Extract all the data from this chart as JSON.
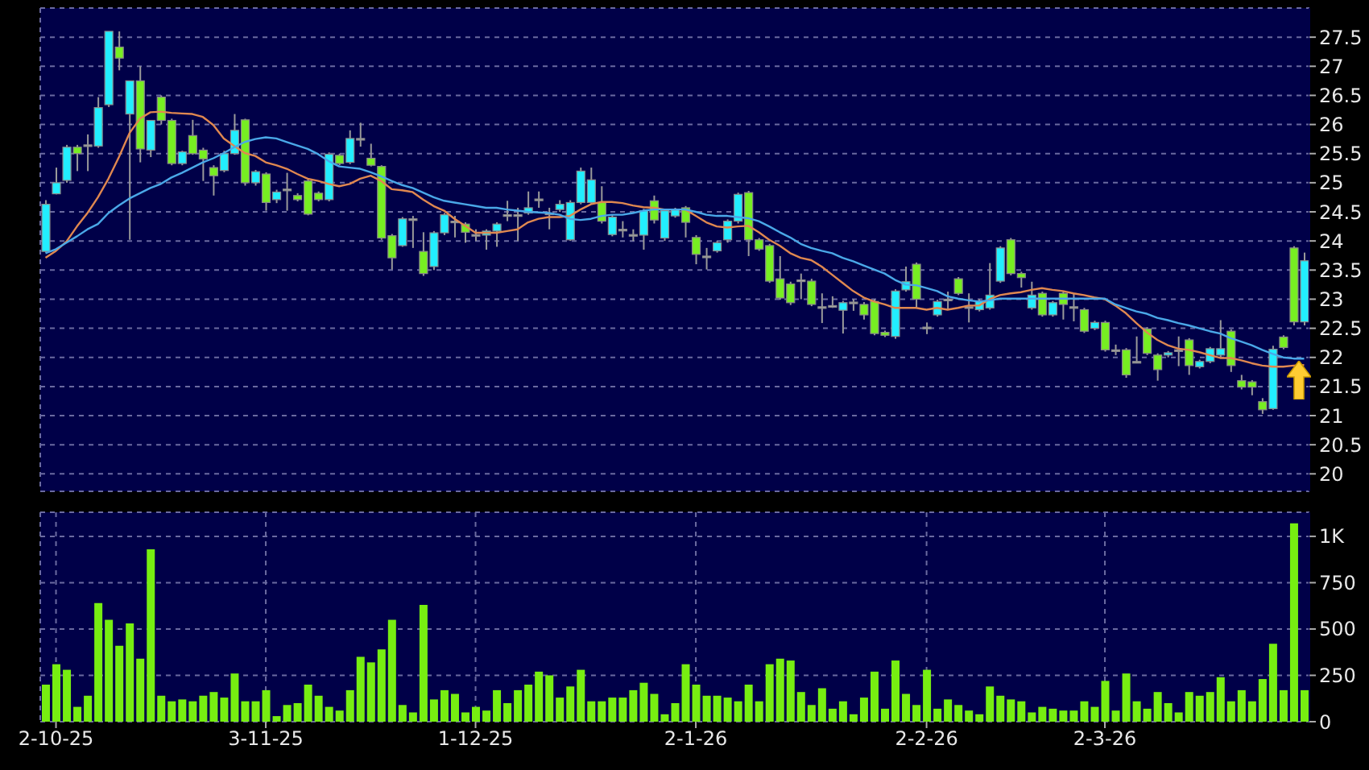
{
  "chart_data": [
    {
      "type": "candlestick",
      "categories": [
        null,
        null,
        null,
        null,
        null,
        null,
        null,
        null,
        null,
        null,
        null,
        null,
        null,
        null,
        null,
        null,
        null,
        null,
        null,
        null,
        null,
        null,
        null,
        null,
        null,
        null,
        null,
        null,
        null,
        null,
        null,
        null,
        null,
        null,
        null,
        null,
        null,
        null,
        null,
        null,
        null,
        null,
        null,
        null,
        null,
        null,
        null,
        null,
        null,
        null,
        null,
        null,
        null,
        null,
        null,
        null,
        null,
        null,
        null,
        null,
        null,
        null,
        null,
        null,
        null,
        null,
        null,
        null,
        null,
        null,
        null,
        null,
        null,
        null,
        null,
        null,
        null,
        null,
        null,
        null,
        null,
        null,
        null,
        null,
        null,
        null,
        null,
        null,
        null,
        null,
        null,
        null,
        null,
        null,
        null,
        null,
        null,
        null,
        null,
        null,
        null,
        null,
        null,
        null,
        null,
        null,
        null,
        null,
        null,
        null,
        null,
        null,
        null,
        null,
        null,
        null,
        null,
        null,
        null,
        null,
        null
      ],
      "ohlc": [
        [
          23.82,
          24.7,
          23.8,
          24.63
        ],
        [
          24.81,
          25.26,
          24.8,
          25.0
        ],
        [
          25.04,
          25.65,
          25.0,
          25.61
        ],
        [
          25.61,
          25.65,
          25.2,
          25.5
        ],
        [
          25.65,
          25.83,
          25.2,
          25.65
        ],
        [
          25.63,
          26.47,
          25.6,
          26.29
        ],
        [
          26.34,
          27.6,
          26.3,
          27.6
        ],
        [
          27.33,
          27.6,
          26.93,
          27.14
        ],
        [
          26.18,
          26.75,
          24.02,
          26.75
        ],
        [
          26.75,
          27.0,
          25.35,
          25.58
        ],
        [
          25.56,
          26.07,
          25.44,
          26.07
        ],
        [
          26.47,
          26.5,
          26.0,
          26.07
        ],
        [
          26.07,
          26.1,
          25.3,
          25.33
        ],
        [
          25.33,
          25.55,
          25.3,
          25.53
        ],
        [
          25.81,
          26.08,
          25.48,
          25.5
        ],
        [
          25.56,
          25.6,
          25.03,
          25.41
        ],
        [
          25.26,
          25.3,
          24.78,
          25.12
        ],
        [
          25.21,
          25.55,
          25.18,
          25.5
        ],
        [
          25.5,
          26.18,
          25.48,
          25.9
        ],
        [
          26.08,
          26.1,
          24.95,
          25.0
        ],
        [
          25.0,
          25.22,
          24.95,
          25.19
        ],
        [
          25.15,
          25.18,
          24.52,
          24.66
        ],
        [
          24.71,
          24.88,
          24.65,
          24.84
        ],
        [
          24.89,
          25.17,
          24.52,
          24.89
        ],
        [
          24.78,
          24.82,
          24.68,
          24.71
        ],
        [
          25.03,
          25.06,
          24.44,
          24.46
        ],
        [
          24.82,
          24.85,
          24.68,
          24.71
        ],
        [
          24.71,
          25.52,
          24.68,
          25.49
        ],
        [
          25.47,
          25.5,
          25.3,
          25.33
        ],
        [
          25.35,
          25.9,
          25.32,
          25.76
        ],
        [
          25.76,
          26.03,
          25.62,
          25.76
        ],
        [
          25.42,
          25.67,
          25.28,
          25.3
        ],
        [
          25.28,
          25.3,
          24.02,
          24.05
        ],
        [
          24.09,
          24.12,
          23.51,
          23.71
        ],
        [
          23.92,
          24.41,
          23.9,
          24.38
        ],
        [
          24.38,
          24.43,
          23.88,
          24.38
        ],
        [
          23.82,
          24.15,
          23.4,
          23.44
        ],
        [
          23.56,
          24.17,
          23.5,
          24.14
        ],
        [
          24.14,
          24.48,
          24.1,
          24.45
        ],
        [
          24.34,
          24.43,
          24.06,
          24.34
        ],
        [
          24.29,
          24.32,
          23.97,
          24.15
        ],
        [
          24.11,
          24.2,
          24.0,
          24.11
        ],
        [
          24.1,
          24.2,
          23.85,
          24.17
        ],
        [
          24.17,
          24.32,
          23.9,
          24.29
        ],
        [
          24.45,
          24.69,
          24.34,
          24.45
        ],
        [
          24.45,
          24.57,
          24.0,
          24.45
        ],
        [
          24.48,
          24.85,
          24.45,
          24.57
        ],
        [
          24.72,
          24.85,
          24.57,
          24.72
        ],
        [
          24.48,
          24.57,
          24.2,
          24.48
        ],
        [
          24.54,
          24.7,
          24.5,
          24.63
        ],
        [
          24.02,
          24.7,
          24.0,
          24.66
        ],
        [
          24.66,
          25.26,
          24.63,
          25.2
        ],
        [
          24.66,
          25.26,
          24.63,
          25.05
        ],
        [
          24.66,
          24.94,
          24.3,
          24.34
        ],
        [
          24.11,
          24.45,
          24.08,
          24.41
        ],
        [
          24.2,
          24.34,
          24.06,
          24.2
        ],
        [
          24.11,
          24.2,
          24.0,
          24.11
        ],
        [
          24.1,
          24.55,
          23.85,
          24.52
        ],
        [
          24.69,
          24.78,
          24.3,
          24.36
        ],
        [
          24.05,
          24.55,
          24.0,
          24.52
        ],
        [
          24.43,
          24.57,
          24.4,
          24.54
        ],
        [
          24.57,
          24.6,
          24.06,
          24.32
        ],
        [
          24.06,
          24.1,
          23.6,
          23.77
        ],
        [
          23.74,
          23.88,
          23.51,
          23.74
        ],
        [
          23.83,
          24.0,
          23.8,
          23.97
        ],
        [
          24.02,
          24.37,
          23.97,
          24.34
        ],
        [
          24.34,
          24.83,
          24.3,
          24.8
        ],
        [
          24.83,
          24.86,
          23.74,
          24.02
        ],
        [
          24.02,
          24.05,
          23.83,
          23.86
        ],
        [
          23.92,
          23.95,
          23.28,
          23.31
        ],
        [
          23.35,
          23.74,
          22.99,
          23.02
        ],
        [
          23.26,
          23.3,
          22.9,
          22.94
        ],
        [
          23.33,
          23.44,
          23.0,
          23.33
        ],
        [
          23.31,
          23.35,
          22.88,
          22.91
        ],
        [
          22.87,
          23.1,
          22.59,
          22.87
        ],
        [
          22.89,
          23.05,
          22.85,
          22.89
        ],
        [
          22.81,
          22.97,
          22.41,
          22.94
        ],
        [
          22.95,
          23.0,
          22.8,
          22.95
        ],
        [
          22.91,
          22.95,
          22.65,
          22.73
        ],
        [
          22.96,
          23.0,
          22.38,
          22.41
        ],
        [
          22.43,
          22.46,
          22.35,
          22.38
        ],
        [
          22.36,
          23.17,
          22.32,
          23.14
        ],
        [
          23.16,
          23.56,
          23.13,
          23.3
        ],
        [
          23.6,
          23.63,
          22.86,
          23.0
        ],
        [
          22.52,
          22.6,
          22.4,
          22.52
        ],
        [
          22.73,
          22.99,
          22.7,
          22.96
        ],
        [
          23.0,
          23.13,
          22.82,
          23.0
        ],
        [
          23.35,
          23.38,
          23.07,
          23.1
        ],
        [
          22.87,
          23.1,
          22.6,
          22.87
        ],
        [
          22.82,
          23.0,
          22.79,
          22.97
        ],
        [
          22.85,
          23.62,
          22.82,
          23.07
        ],
        [
          23.31,
          23.91,
          23.28,
          23.88
        ],
        [
          24.02,
          24.05,
          23.41,
          23.44
        ],
        [
          23.44,
          23.47,
          23.2,
          23.37
        ],
        [
          22.85,
          23.3,
          22.82,
          23.07
        ],
        [
          23.1,
          23.13,
          22.7,
          22.73
        ],
        [
          22.73,
          22.97,
          22.7,
          22.94
        ],
        [
          23.1,
          23.13,
          22.65,
          22.91
        ],
        [
          22.87,
          23.1,
          22.62,
          22.87
        ],
        [
          22.82,
          22.85,
          22.42,
          22.45
        ],
        [
          22.5,
          22.63,
          22.47,
          22.6
        ],
        [
          22.6,
          22.63,
          22.1,
          22.13
        ],
        [
          22.13,
          22.22,
          22.04,
          22.13
        ],
        [
          22.13,
          22.16,
          21.65,
          21.7
        ],
        [
          21.93,
          22.36,
          21.9,
          21.93
        ],
        [
          22.49,
          22.52,
          22.04,
          22.07
        ],
        [
          22.04,
          22.07,
          21.6,
          21.79
        ],
        [
          22.04,
          22.11,
          22.0,
          22.08
        ],
        [
          22.13,
          22.36,
          21.85,
          22.13
        ],
        [
          22.3,
          22.33,
          21.7,
          21.86
        ],
        [
          21.84,
          21.96,
          21.81,
          21.93
        ],
        [
          21.93,
          22.18,
          21.9,
          22.15
        ],
        [
          22.04,
          22.64,
          22.01,
          22.15
        ],
        [
          22.45,
          22.48,
          21.75,
          21.86
        ],
        [
          21.6,
          21.7,
          21.45,
          21.49
        ],
        [
          21.58,
          21.61,
          21.35,
          21.49
        ],
        [
          21.24,
          21.3,
          21.03,
          21.1
        ],
        [
          21.12,
          22.2,
          21.1,
          22.14
        ],
        [
          22.35,
          22.38,
          22.14,
          22.17
        ],
        [
          23.88,
          23.91,
          22.55,
          22.61
        ],
        [
          22.61,
          23.8,
          22.55,
          23.66
        ]
      ],
      "colors": [
        "#22eeff",
        "#22eeff",
        "#22eeff",
        "#77ee22",
        "#aaaaaa",
        "#22eeff",
        "#22eeff",
        "#77ee22",
        "#22eeff",
        "#77ee22",
        "#22eeff",
        "#77ee22",
        "#77ee22",
        "#22eeff",
        "#77ee22",
        "#77ee22",
        "#77ee22",
        "#22eeff",
        "#22eeff",
        "#77ee22",
        "#22eeff",
        "#77ee22",
        "#22eeff",
        "#aaaaaa",
        "#77ee22",
        "#77ee22",
        "#77ee22",
        "#22eeff",
        "#77ee22",
        "#22eeff",
        "#aaaaaa",
        "#77ee22",
        "#77ee22",
        "#77ee22",
        "#22eeff",
        "#aaaaaa",
        "#77ee22",
        "#22eeff",
        "#22eeff",
        "#aaaaaa",
        "#77ee22",
        "#aaaaaa",
        "#22eeff",
        "#22eeff",
        "#aaaaaa",
        "#aaaaaa",
        "#22eeff",
        "#aaaaaa",
        "#aaaaaa",
        "#22eeff",
        "#22eeff",
        "#22eeff",
        "#22eeff",
        "#77ee22",
        "#22eeff",
        "#aaaaaa",
        "#aaaaaa",
        "#22eeff",
        "#77ee22",
        "#22eeff",
        "#22eeff",
        "#77ee22",
        "#77ee22",
        "#aaaaaa",
        "#22eeff",
        "#22eeff",
        "#22eeff",
        "#77ee22",
        "#77ee22",
        "#77ee22",
        "#77ee22",
        "#77ee22",
        "#aaaaaa",
        "#77ee22",
        "#aaaaaa",
        "#aaaaaa",
        "#22eeff",
        "#aaaaaa",
        "#77ee22",
        "#77ee22",
        "#77ee22",
        "#22eeff",
        "#22eeff",
        "#77ee22",
        "#aaaaaa",
        "#22eeff",
        "#aaaaaa",
        "#77ee22",
        "#aaaaaa",
        "#22eeff",
        "#22eeff",
        "#22eeff",
        "#77ee22",
        "#77ee22",
        "#22eeff",
        "#77ee22",
        "#22eeff",
        "#77ee22",
        "#aaaaaa",
        "#77ee22",
        "#22eeff",
        "#77ee22",
        "#aaaaaa",
        "#77ee22",
        "#aaaaaa",
        "#77ee22",
        "#77ee22",
        "#22eeff",
        "#aaaaaa",
        "#77ee22",
        "#22eeff",
        "#22eeff",
        "#22eeff",
        "#77ee22",
        "#77ee22",
        "#77ee22",
        "#77ee22",
        "#22eeff",
        "#77ee22",
        "#77ee22",
        "#22eeff"
      ],
      "series": [
        {
          "type": "line",
          "color": "#e08850",
          "values": [
            23.71,
            23.83,
            23.99,
            24.25,
            24.48,
            24.75,
            25.07,
            25.44,
            25.85,
            26.1,
            26.21,
            26.22,
            26.2,
            26.19,
            26.18,
            26.13,
            25.99,
            25.76,
            25.63,
            25.51,
            25.46,
            25.35,
            25.3,
            25.24,
            25.15,
            25.07,
            25.03,
            24.98,
            24.94,
            24.98,
            25.07,
            25.12,
            25.03,
            24.89,
            24.87,
            24.84,
            24.71,
            24.6,
            24.52,
            24.38,
            24.26,
            24.14,
            24.14,
            24.14,
            24.17,
            24.2,
            24.32,
            24.38,
            24.41,
            24.41,
            24.43,
            24.54,
            24.63,
            24.67,
            24.67,
            24.65,
            24.61,
            24.58,
            24.57,
            24.54,
            24.54,
            24.54,
            24.43,
            24.32,
            24.25,
            24.23,
            24.25,
            24.26,
            24.15,
            24.02,
            23.92,
            23.79,
            23.71,
            23.67,
            23.56,
            23.42,
            23.28,
            23.14,
            23.03,
            22.96,
            22.91,
            22.85,
            22.85,
            22.85,
            22.82,
            22.85,
            22.82,
            22.85,
            22.89,
            22.89,
            23.0,
            23.07,
            23.1,
            23.12,
            23.16,
            23.19,
            23.16,
            23.14,
            23.1,
            23.07,
            23.03,
            23.0,
            22.89,
            22.76,
            22.59,
            22.43,
            22.3,
            22.21,
            22.15,
            22.13,
            22.09,
            22.04,
            21.99,
            21.99,
            21.95,
            21.9,
            21.86,
            21.84,
            21.84,
            21.86,
            21.87
          ]
        },
        {
          "type": "line",
          "color": "#4aa8e8",
          "values": [
            23.79,
            23.86,
            23.97,
            24.08,
            24.2,
            24.29,
            24.48,
            24.61,
            24.73,
            24.82,
            24.91,
            24.98,
            25.09,
            25.17,
            25.26,
            25.35,
            25.42,
            25.51,
            25.61,
            25.7,
            25.75,
            25.78,
            25.76,
            25.7,
            25.64,
            25.58,
            25.49,
            25.37,
            25.28,
            25.26,
            25.24,
            25.18,
            25.11,
            25.03,
            24.96,
            24.91,
            24.83,
            24.75,
            24.69,
            24.66,
            24.63,
            24.6,
            24.57,
            24.57,
            24.54,
            24.52,
            24.5,
            24.49,
            24.48,
            24.45,
            24.38,
            24.36,
            24.38,
            24.43,
            24.45,
            24.45,
            24.48,
            24.52,
            24.54,
            24.54,
            24.54,
            24.54,
            24.5,
            24.45,
            24.43,
            24.43,
            24.41,
            24.39,
            24.34,
            24.25,
            24.15,
            24.06,
            23.95,
            23.88,
            23.83,
            23.79,
            23.71,
            23.65,
            23.58,
            23.51,
            23.44,
            23.33,
            23.25,
            23.24,
            23.19,
            23.14,
            23.05,
            23.01,
            22.98,
            22.96,
            22.98,
            23.01,
            23.01,
            23.01,
            23.01,
            23.01,
            23.01,
            23.01,
            23.01,
            23.01,
            23.01,
            23.01,
            22.91,
            22.85,
            22.79,
            22.75,
            22.68,
            22.64,
            22.59,
            22.55,
            22.5,
            22.45,
            22.41,
            22.33,
            22.27,
            22.21,
            22.13,
            22.06,
            22.0,
            21.98,
            21.98
          ]
        }
      ],
      "ylim": [
        19.7,
        28
      ],
      "yticks": [
        20,
        20.5,
        21,
        21.5,
        22,
        22.5,
        23,
        23.5,
        24,
        24.5,
        25,
        25.5,
        26,
        26.5,
        27,
        27.5
      ],
      "grid": true,
      "tick_labels": "y",
      "marker": "none"
    },
    {
      "type": "bar",
      "categories": [
        null,
        "2-10-25",
        null,
        null,
        null,
        null,
        null,
        null,
        null,
        null,
        null,
        null,
        null,
        null,
        null,
        null,
        null,
        null,
        null,
        null,
        null,
        "3-11-25",
        null,
        null,
        null,
        null,
        null,
        null,
        null,
        null,
        null,
        null,
        null,
        null,
        null,
        null,
        null,
        null,
        null,
        null,
        null,
        "1-12-25",
        null,
        null,
        null,
        null,
        null,
        null,
        null,
        null,
        null,
        null,
        null,
        null,
        null,
        null,
        null,
        null,
        null,
        null,
        null,
        null,
        "2-1-26",
        null,
        null,
        null,
        null,
        null,
        null,
        null,
        null,
        null,
        null,
        null,
        null,
        null,
        null,
        null,
        null,
        null,
        null,
        null,
        null,
        null,
        "2-2-26",
        null,
        null,
        null,
        null,
        null,
        null,
        null,
        null,
        null,
        null,
        null,
        null,
        null,
        null,
        null,
        null,
        "2-3-26",
        null,
        null,
        null,
        null,
        null,
        null,
        null,
        null,
        null,
        null,
        null,
        null,
        null,
        null,
        null,
        null,
        null,
        null,
        null
      ],
      "values": [
        200,
        310,
        280,
        80,
        140,
        640,
        550,
        410,
        530,
        340,
        930,
        140,
        110,
        120,
        110,
        140,
        160,
        130,
        260,
        110,
        110,
        170,
        30,
        90,
        100,
        200,
        140,
        80,
        60,
        170,
        350,
        320,
        390,
        550,
        90,
        50,
        630,
        120,
        170,
        150,
        50,
        80,
        60,
        170,
        100,
        170,
        200,
        270,
        250,
        130,
        190,
        280,
        110,
        110,
        130,
        130,
        170,
        210,
        150,
        40,
        100,
        310,
        200,
        140,
        140,
        130,
        110,
        200,
        110,
        310,
        340,
        330,
        160,
        90,
        180,
        70,
        110,
        40,
        130,
        270,
        70,
        330,
        150,
        90,
        280,
        70,
        120,
        90,
        60,
        40,
        190,
        140,
        120,
        110,
        50,
        80,
        70,
        60,
        60,
        110,
        80,
        220,
        60,
        260,
        110,
        70,
        160,
        100,
        50,
        160,
        140,
        160,
        240,
        110,
        170,
        110,
        230,
        420,
        170,
        1070,
        170
      ],
      "color": "#77ee11",
      "ylim": [
        0,
        1130
      ],
      "yticks": [
        0,
        250,
        500,
        750,
        {
          "value": 1000,
          "label": "1K"
        }
      ],
      "grid": true
    }
  ]
}
